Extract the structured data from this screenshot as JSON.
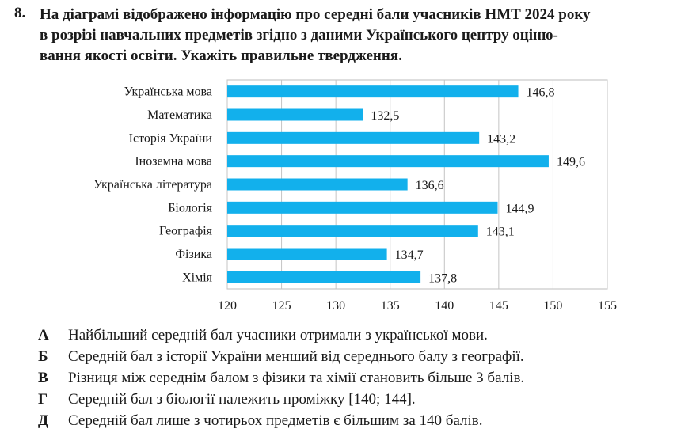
{
  "question": {
    "number": "8.",
    "lines": [
      "На діаграмі відображено інформацію про середні бали учасників НМТ 2024 року",
      "в розрізі навчальних предметів згідно з даними Українського центру оціню-",
      "вання якості освіти. Укажіть правильне твердження."
    ]
  },
  "chart_data": {
    "type": "bar",
    "orientation": "horizontal",
    "categories": [
      "Українська мова",
      "Математика",
      "Історія України",
      "Іноземна мова",
      "Українська література",
      "Біологія",
      "Географія",
      "Фізика",
      "Хімія"
    ],
    "values": [
      146.8,
      132.5,
      143.2,
      149.6,
      136.6,
      144.9,
      143.1,
      134.7,
      137.8
    ],
    "value_labels": [
      "146,8",
      "132,5",
      "143,2",
      "149,6",
      "136,6",
      "144,9",
      "143,1",
      "134,7",
      "137,8"
    ],
    "xlim": [
      120,
      155
    ],
    "xticks": [
      "120",
      "125",
      "130",
      "135",
      "140",
      "145",
      "150",
      "155"
    ],
    "bar_color": "#12b0ec",
    "grid": true,
    "legend": false
  },
  "answers": [
    {
      "letter": "А",
      "text": "Найбільший середній бал учасники отримали з української мови."
    },
    {
      "letter": "Б",
      "text": "Середній бал з історії України менший від середнього балу з географії."
    },
    {
      "letter": "В",
      "text": "Різниця між середнім балом з фізики та хімії становить більше 3 балів."
    },
    {
      "letter": "Г",
      "text": "Середній бал з біології належить проміжку [140; 144]."
    },
    {
      "letter": "Д",
      "text": "Середній бал лише з чотирьох предметів є більшим за 140 балів."
    }
  ]
}
